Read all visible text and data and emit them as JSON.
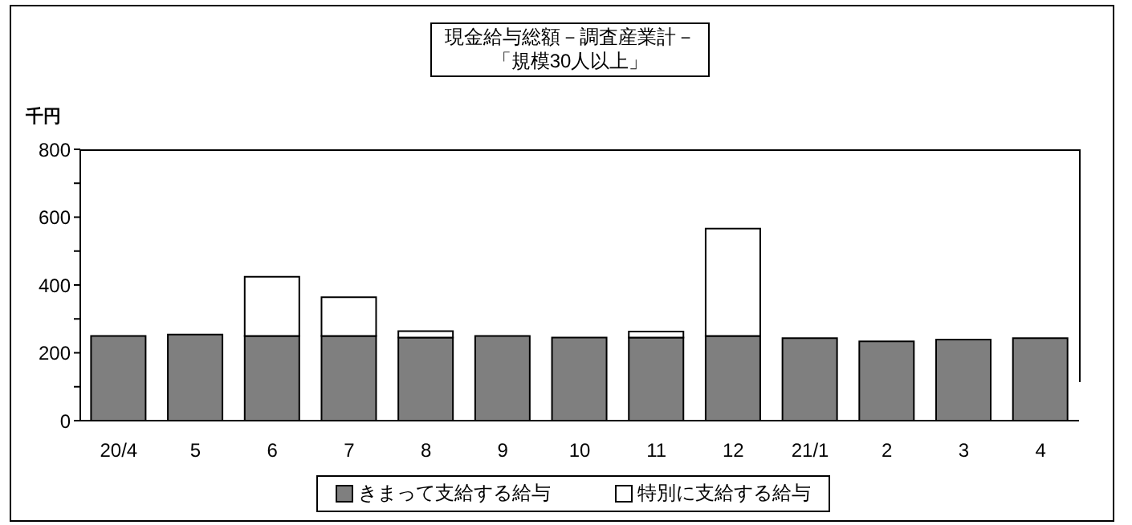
{
  "chart_data": {
    "type": "bar",
    "title": "現金給与総額－調査産業計－「規模30人以上」",
    "ylabel": "千円",
    "stacked": true,
    "categories": [
      "20/4",
      "5",
      "6",
      "7",
      "8",
      "9",
      "10",
      "11",
      "12",
      "21/1",
      "2",
      "3",
      "4"
    ],
    "series": [
      {
        "name": "きまって支給する給与",
        "color": "#7f7f7f",
        "values": [
          250,
          254,
          250,
          250,
          245,
          250,
          245,
          245,
          250,
          243,
          234,
          239,
          243
        ]
      },
      {
        "name": "特別に支給する給与",
        "color": "#ffffff",
        "values": [
          0,
          null,
          174,
          114,
          19,
          null,
          0,
          18,
          316,
          null,
          0,
          0,
          null
        ]
      }
    ],
    "ylim": [
      0,
      800
    ],
    "yticks": [
      0,
      {
        "value": 100,
        "label": null
      },
      200,
      {
        "value": 300,
        "label": null
      },
      400,
      {
        "value": 500,
        "label": null
      },
      600,
      {
        "value": 700,
        "label": null
      },
      800
    ],
    "grid": false,
    "legend": "bottom"
  }
}
